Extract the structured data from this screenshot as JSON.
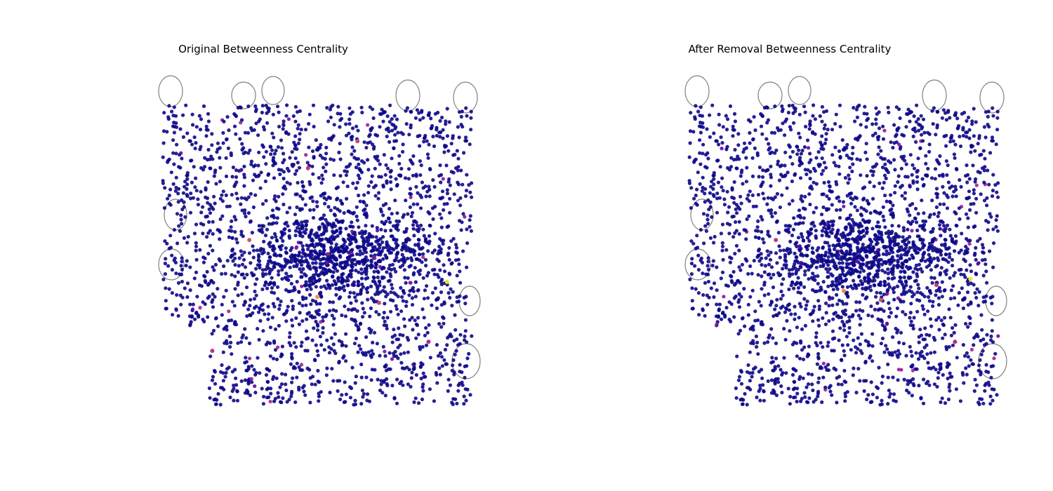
{
  "chart_data": [
    {
      "type": "scatter",
      "title": "Original Betweenness Centrality",
      "colormap": "plasma",
      "colormap_stops": [
        "#0d0887",
        "#6a00a8",
        "#b12a90",
        "#e16462",
        "#fca636",
        "#f0f921"
      ],
      "edge_color": "#808080",
      "axes_visible": false,
      "xlim": [
        0,
        1
      ],
      "ylim": [
        0,
        1
      ],
      "highlights": [
        {
          "x": 0.92,
          "y": 0.41,
          "c": 0.95
        },
        {
          "x": 0.5,
          "y": 0.36,
          "c": 0.75
        },
        {
          "x": 0.28,
          "y": 0.55,
          "c": 0.55
        },
        {
          "x": 0.63,
          "y": 0.88,
          "c": 0.5
        },
        {
          "x": 0.47,
          "y": 0.79,
          "c": 0.45
        },
        {
          "x": 0.16,
          "y": 0.18,
          "c": 0.45
        },
        {
          "x": 0.7,
          "y": 0.34,
          "c": 0.5
        },
        {
          "x": 0.86,
          "y": 0.21,
          "c": 0.4
        }
      ]
    },
    {
      "type": "scatter",
      "title": "After Removal Betweenness Centrality",
      "colormap": "plasma",
      "colormap_stops": [
        "#0d0887",
        "#6a00a8",
        "#b12a90",
        "#e16462",
        "#fca636",
        "#f0f921"
      ],
      "edge_color": "#808080",
      "axes_visible": false,
      "xlim": [
        0,
        1
      ],
      "ylim": [
        0,
        1
      ],
      "highlights": [
        {
          "x": 0.91,
          "y": 0.42,
          "c": 0.95
        },
        {
          "x": 0.5,
          "y": 0.38,
          "c": 0.7
        },
        {
          "x": 0.62,
          "y": 0.35,
          "c": 0.55
        },
        {
          "x": 0.28,
          "y": 0.55,
          "c": 0.45
        },
        {
          "x": 0.8,
          "y": 0.4,
          "c": 0.45
        },
        {
          "x": 0.86,
          "y": 0.21,
          "c": 0.4
        }
      ]
    }
  ]
}
